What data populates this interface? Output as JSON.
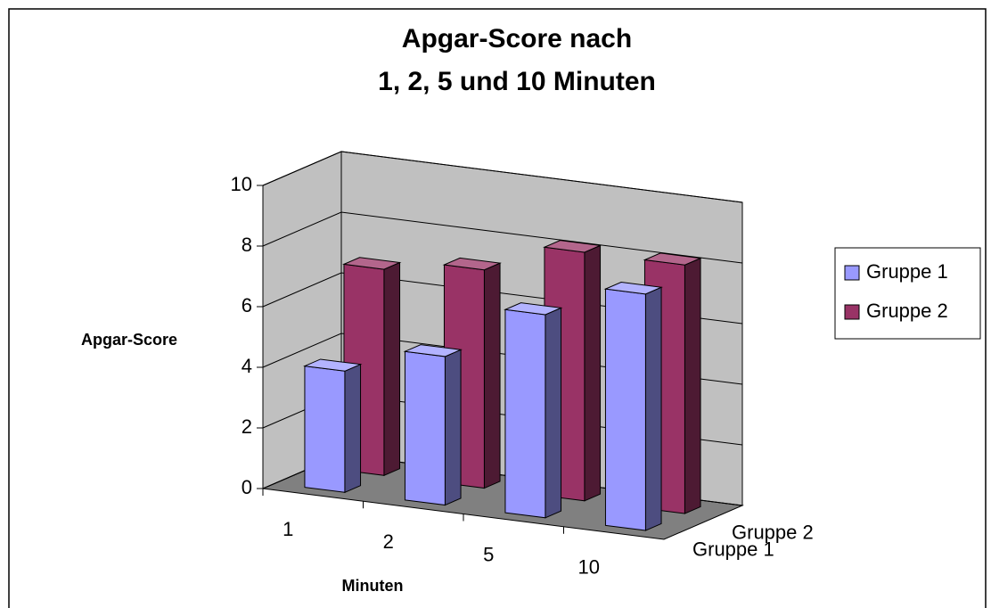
{
  "chart_data": {
    "type": "bar3d",
    "title": [
      "Apgar-Score nach",
      "1, 2, 5 und 10 Minuten"
    ],
    "x_label": "Minuten",
    "y_label": "Apgar-Score",
    "categories": [
      "1",
      "2",
      "5",
      "10"
    ],
    "series": [
      {
        "name": "Gruppe 1",
        "color": "#9999ff",
        "values": [
          4,
          4.9,
          6.7,
          7.8
        ]
      },
      {
        "name": "Gruppe 2",
        "color": "#993366",
        "values": [
          6.8,
          7.2,
          8.2,
          8.2
        ]
      }
    ],
    "ylim": [
      0,
      10
    ],
    "yticks": [
      0,
      2,
      4,
      6,
      8,
      10
    ],
    "grid": true,
    "legend": "right"
  }
}
